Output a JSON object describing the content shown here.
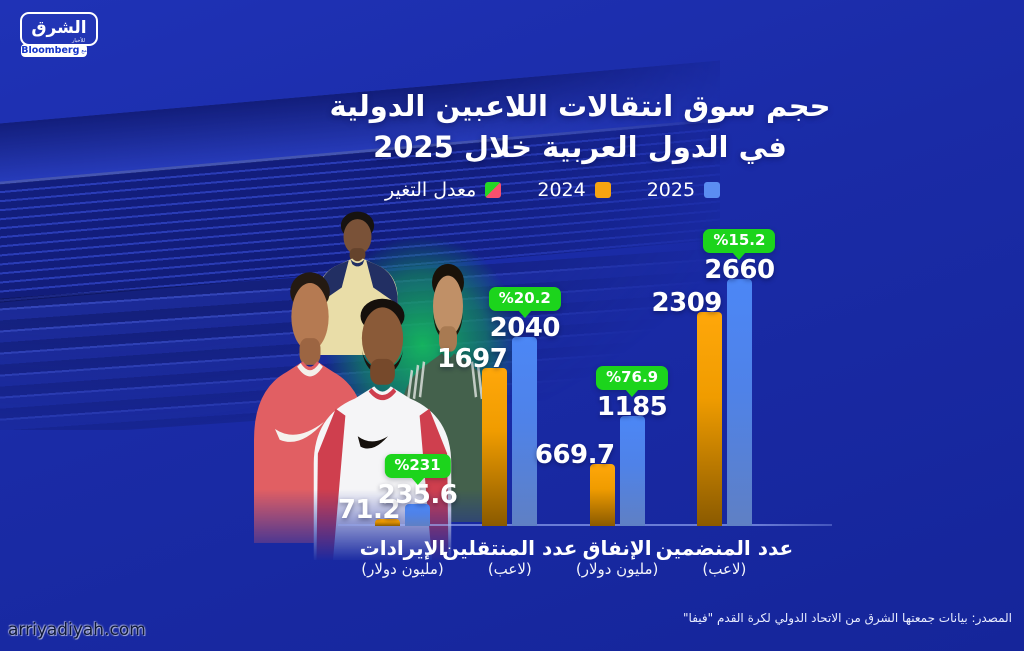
{
  "logo": {
    "name": "الشرق",
    "sub": "للأخبار",
    "partner_prefix": "مع",
    "partner": "Bloomberg"
  },
  "title": {
    "line1": "حجم سوق انتقالات اللاعبين الدولية",
    "line2": "في الدول العربية خلال 2025"
  },
  "legend": {
    "change_label": "معدل التغير",
    "y2024_label": "2024",
    "y2025_label": "2025"
  },
  "colors": {
    "background": "#1a2ba6",
    "bar_2024": "#f5a40a",
    "bar_2025": "#4c87f6",
    "badge_green": "#1cd41c",
    "legend_change_green": "#25d625",
    "legend_change_red": "#f9506e"
  },
  "chart_data": {
    "type": "bar",
    "title": "حجم سوق انتقالات اللاعبين الدولية في الدول العربية خلال 2025",
    "legend": [
      "معدل التغير",
      "2024",
      "2025"
    ],
    "legend_position": "top",
    "grid": false,
    "ylim": [
      0,
      2660
    ],
    "categories": [
      "الإيرادات",
      "عدد المنتقلين",
      "الإنفاق",
      "عدد المنضمين"
    ],
    "category_units": [
      "(مليون دولار)",
      "(لاعب)",
      "(مليون دولار)",
      "(لاعب)"
    ],
    "series": [
      {
        "name": "2024",
        "color": "#f5a40a",
        "values": [
          71.2,
          1697,
          669.7,
          2309
        ]
      },
      {
        "name": "2025",
        "color": "#4c87f6",
        "values": [
          235.6,
          2040,
          1185,
          2660
        ]
      }
    ],
    "change_labels": [
      "%231",
      "%20.2",
      "%76.9",
      "%15.2"
    ],
    "value_labels_shown": true
  },
  "footer": {
    "source": "المصدر: بيانات جمعتها الشرق من الاتحاد الدولي لكرة القدم \"فيفا\"",
    "watermark": "arriyadiyah.com"
  }
}
